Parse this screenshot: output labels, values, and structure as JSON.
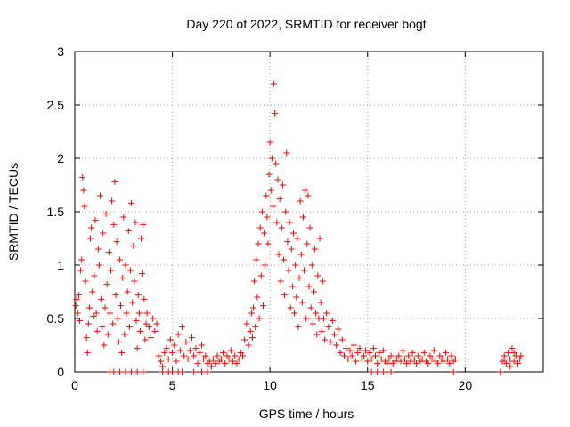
{
  "chart_data": {
    "type": "scatter",
    "title": "Day 220 of 2022, SRMTID for receiver bogt",
    "xlabel": "GPS time / hours",
    "ylabel": "SRMTID / TECUs",
    "xlim": [
      0,
      24
    ],
    "ylim": [
      0,
      3
    ],
    "xticks": [
      0,
      5,
      10,
      15,
      20
    ],
    "yticks": [
      0,
      0.5,
      1,
      1.5,
      2,
      2.5,
      3
    ],
    "ytick_labels": [
      "0",
      "0.5",
      "1",
      "1.5",
      "2",
      "2.5",
      "3"
    ],
    "grid": true,
    "marker": "+",
    "marker_color": "#ff0000",
    "series": [
      {
        "name": "SRMTID",
        "points": [
          [
            0.05,
            0.62
          ],
          [
            0.1,
            0.68
          ],
          [
            0.15,
            0.55
          ],
          [
            0.2,
            0.72
          ],
          [
            0.25,
            0.48
          ],
          [
            0.3,
            0.95
          ],
          [
            0.35,
            1.05
          ],
          [
            0.4,
            1.82
          ],
          [
            0.45,
            1.7
          ],
          [
            0.5,
            1.55
          ],
          [
            0.55,
            0.85
          ],
          [
            0.6,
            0.32
          ],
          [
            0.65,
            0.18
          ],
          [
            0.7,
            0.45
          ],
          [
            0.75,
            0.6
          ],
          [
            0.8,
            1.25
          ],
          [
            0.85,
            1.35
          ],
          [
            0.9,
            0.75
          ],
          [
            0.95,
            0.52
          ],
          [
            1.0,
            0.9
          ],
          [
            1.05,
            1.42
          ],
          [
            1.1,
            0.55
          ],
          [
            1.15,
            0.38
          ],
          [
            1.2,
            1.15
          ],
          [
            1.25,
            1.0
          ],
          [
            1.3,
            1.65
          ],
          [
            1.35,
            0.68
          ],
          [
            1.4,
            0.42
          ],
          [
            1.45,
            1.3
          ],
          [
            1.5,
            0.25
          ],
          [
            1.55,
            0.6
          ],
          [
            1.6,
            1.48
          ],
          [
            1.65,
            0.82
          ],
          [
            1.7,
            0.35
          ],
          [
            1.75,
            1.12
          ],
          [
            1.8,
            0.55
          ],
          [
            1.85,
            0.95
          ],
          [
            1.9,
            1.6
          ],
          [
            1.95,
            0.45
          ],
          [
            2.0,
            1.38
          ],
          [
            2.05,
            1.78
          ],
          [
            2.1,
            0.72
          ],
          [
            2.15,
            1.22
          ],
          [
            2.2,
            0.5
          ],
          [
            2.25,
            0.28
          ],
          [
            2.3,
            1.05
          ],
          [
            2.35,
            0.62
          ],
          [
            2.4,
            0.18
          ],
          [
            2.45,
            0.88
          ],
          [
            2.5,
            1.45
          ],
          [
            2.55,
            0.35
          ],
          [
            2.6,
            1.0
          ],
          [
            2.65,
            0.55
          ],
          [
            2.7,
            0.75
          ],
          [
            2.75,
            1.32
          ],
          [
            2.8,
            0.42
          ],
          [
            2.85,
            0.95
          ],
          [
            2.9,
            1.58
          ],
          [
            2.95,
            0.65
          ],
          [
            3.0,
            1.18
          ],
          [
            3.05,
            0.85
          ],
          [
            3.1,
            1.4
          ],
          [
            3.15,
            0.48
          ],
          [
            3.2,
            0.22
          ],
          [
            3.25,
            0.72
          ],
          [
            3.3,
            0.55
          ],
          [
            3.35,
            0.38
          ],
          [
            3.4,
            1.25
          ],
          [
            3.45,
            0.92
          ],
          [
            3.5,
            1.38
          ],
          [
            3.55,
            0.68
          ],
          [
            3.6,
            0.3
          ],
          [
            3.65,
            0.45
          ],
          [
            3.7,
            0.55
          ],
          [
            3.8,
            0.42
          ],
          [
            3.9,
            0.32
          ],
          [
            4.0,
            0.5
          ],
          [
            4.1,
            0.38
          ],
          [
            4.2,
            0.45
          ],
          [
            4.3,
            0.15
          ],
          [
            1.8,
            0.0
          ],
          [
            2.0,
            0.0
          ],
          [
            2.3,
            0.0
          ],
          [
            2.6,
            0.0
          ],
          [
            2.9,
            0.0
          ],
          [
            3.2,
            0.0
          ],
          [
            3.5,
            0.0
          ],
          [
            4.4,
            0.1
          ],
          [
            4.5,
            0.05
          ],
          [
            4.6,
            0.18
          ],
          [
            4.7,
            0.22
          ],
          [
            4.8,
            0.12
          ],
          [
            4.9,
            0.3
          ],
          [
            5.0,
            0.18
          ],
          [
            5.1,
            0.25
          ],
          [
            5.2,
            0.1
          ],
          [
            5.3,
            0.35
          ],
          [
            5.4,
            0.2
          ],
          [
            5.5,
            0.42
          ],
          [
            5.6,
            0.15
          ],
          [
            5.7,
            0.28
          ],
          [
            5.8,
            0.12
          ],
          [
            5.9,
            0.2
          ],
          [
            6.0,
            0.32
          ],
          [
            6.1,
            0.15
          ],
          [
            6.2,
            0.22
          ],
          [
            6.3,
            0.08
          ],
          [
            6.4,
            0.18
          ],
          [
            6.5,
            0.25
          ],
          [
            6.6,
            0.12
          ],
          [
            6.7,
            0.15
          ],
          [
            6.8,
            0.08
          ],
          [
            6.9,
            0.1
          ],
          [
            7.0,
            0.05
          ],
          [
            7.1,
            0.12
          ],
          [
            7.2,
            0.08
          ],
          [
            7.3,
            0.15
          ],
          [
            7.4,
            0.1
          ],
          [
            7.5,
            0.12
          ],
          [
            7.6,
            0.18
          ],
          [
            7.7,
            0.08
          ],
          [
            7.8,
            0.15
          ],
          [
            7.9,
            0.12
          ],
          [
            8.0,
            0.2
          ],
          [
            8.1,
            0.1
          ],
          [
            8.2,
            0.15
          ],
          [
            8.3,
            0.08
          ],
          [
            4.5,
            0.0
          ],
          [
            4.8,
            0.0
          ],
          [
            5.0,
            0.0
          ],
          [
            5.3,
            0.0
          ],
          [
            5.5,
            0.0
          ],
          [
            6.1,
            0.0
          ],
          [
            6.5,
            0.0
          ],
          [
            6.8,
            0.0
          ],
          [
            8.4,
            0.12
          ],
          [
            8.5,
            0.18
          ],
          [
            8.6,
            0.15
          ],
          [
            8.7,
            0.3
          ],
          [
            8.8,
            0.45
          ],
          [
            8.9,
            0.25
          ],
          [
            9.0,
            0.38
          ],
          [
            9.05,
            0.55
          ],
          [
            9.1,
            0.32
          ],
          [
            9.15,
            0.6
          ],
          [
            9.2,
            0.85
          ],
          [
            9.25,
            0.42
          ],
          [
            9.3,
            1.05
          ],
          [
            9.35,
            0.7
          ],
          [
            9.4,
            1.2
          ],
          [
            9.45,
            0.5
          ],
          [
            9.5,
            1.35
          ],
          [
            9.55,
            0.9
          ],
          [
            9.6,
            1.5
          ],
          [
            9.65,
            0.62
          ],
          [
            9.7,
            1.3
          ],
          [
            9.75,
            1.0
          ],
          [
            9.8,
            1.65
          ],
          [
            9.85,
            1.45
          ],
          [
            9.9,
            1.2
          ],
          [
            9.95,
            1.85
          ],
          [
            10.0,
            2.15
          ],
          [
            10.05,
            1.7
          ],
          [
            10.1,
            2.0
          ],
          [
            10.15,
            1.55
          ],
          [
            10.2,
            2.7
          ],
          [
            10.25,
            2.42
          ],
          [
            10.3,
            1.95
          ],
          [
            10.35,
            1.4
          ],
          [
            10.4,
            1.8
          ],
          [
            10.45,
            1.1
          ],
          [
            10.5,
            1.62
          ],
          [
            10.55,
            0.85
          ],
          [
            10.6,
            1.35
          ],
          [
            10.65,
            1.75
          ],
          [
            10.7,
            1.05
          ],
          [
            10.75,
            0.72
          ],
          [
            10.8,
            1.5
          ],
          [
            10.85,
            2.05
          ],
          [
            10.9,
            1.22
          ],
          [
            10.95,
            0.95
          ],
          [
            11.0,
            1.4
          ],
          [
            11.05,
            0.6
          ],
          [
            11.1,
            1.15
          ],
          [
            11.15,
            0.8
          ],
          [
            11.2,
            1.3
          ],
          [
            11.25,
            0.55
          ],
          [
            11.3,
            1.0
          ],
          [
            11.35,
            0.7
          ],
          [
            11.4,
            1.25
          ],
          [
            11.45,
            0.42
          ],
          [
            11.5,
            0.88
          ],
          [
            11.55,
            1.6
          ],
          [
            11.6,
            1.1
          ],
          [
            11.65,
            0.65
          ],
          [
            11.7,
            1.45
          ],
          [
            11.75,
            0.95
          ],
          [
            11.8,
            1.7
          ],
          [
            11.85,
            0.5
          ],
          [
            11.9,
            1.2
          ],
          [
            11.95,
            1.65
          ],
          [
            12.0,
            0.8
          ],
          [
            12.05,
            1.35
          ],
          [
            12.1,
            0.6
          ],
          [
            12.15,
            1.0
          ],
          [
            12.2,
            0.45
          ],
          [
            12.25,
            0.75
          ],
          [
            12.3,
            1.15
          ],
          [
            12.35,
            0.55
          ],
          [
            12.4,
            0.35
          ],
          [
            12.45,
            0.9
          ],
          [
            12.5,
            0.5
          ],
          [
            12.55,
            1.25
          ],
          [
            12.6,
            0.65
          ],
          [
            12.65,
            0.38
          ],
          [
            12.7,
            0.85
          ],
          [
            12.75,
            0.5
          ],
          [
            12.8,
            0.3
          ],
          [
            12.9,
            0.55
          ],
          [
            13.0,
            0.42
          ],
          [
            13.1,
            0.28
          ],
          [
            13.2,
            0.48
          ],
          [
            13.3,
            0.35
          ],
          [
            13.4,
            0.25
          ],
          [
            13.5,
            0.4
          ],
          [
            13.6,
            0.18
          ],
          [
            13.7,
            0.3
          ],
          [
            13.8,
            0.15
          ],
          [
            13.9,
            0.22
          ],
          [
            14.0,
            0.12
          ],
          [
            14.1,
            0.2
          ],
          [
            14.2,
            0.15
          ],
          [
            14.3,
            0.25
          ],
          [
            14.4,
            0.1
          ],
          [
            14.5,
            0.18
          ],
          [
            14.6,
            0.22
          ],
          [
            14.7,
            0.12
          ],
          [
            14.8,
            0.15
          ],
          [
            14.9,
            0.2
          ],
          [
            15.0,
            0.1
          ],
          [
            15.1,
            0.18
          ],
          [
            15.2,
            0.12
          ],
          [
            15.3,
            0.22
          ],
          [
            15.4,
            0.15
          ],
          [
            15.5,
            0.08
          ],
          [
            15.6,
            0.18
          ],
          [
            15.7,
            0.12
          ],
          [
            15.8,
            0.2
          ],
          [
            15.9,
            0.1
          ],
          [
            16.0,
            0.08
          ],
          [
            16.1,
            0.12
          ],
          [
            16.2,
            0.15
          ],
          [
            16.3,
            0.08
          ],
          [
            16.4,
            0.1
          ],
          [
            16.5,
            0.12
          ],
          [
            16.6,
            0.15
          ],
          [
            16.7,
            0.1
          ],
          [
            16.8,
            0.2
          ],
          [
            16.9,
            0.12
          ],
          [
            17.0,
            0.08
          ],
          [
            17.1,
            0.15
          ],
          [
            17.2,
            0.1
          ],
          [
            17.3,
            0.18
          ],
          [
            17.4,
            0.12
          ],
          [
            17.5,
            0.08
          ],
          [
            17.6,
            0.15
          ],
          [
            17.7,
            0.1
          ],
          [
            17.8,
            0.12
          ],
          [
            17.9,
            0.18
          ],
          [
            18.0,
            0.1
          ],
          [
            18.1,
            0.08
          ],
          [
            18.2,
            0.15
          ],
          [
            18.3,
            0.12
          ],
          [
            18.4,
            0.2
          ],
          [
            18.5,
            0.1
          ],
          [
            18.6,
            0.08
          ],
          [
            18.7,
            0.15
          ],
          [
            18.8,
            0.12
          ],
          [
            18.9,
            0.1
          ],
          [
            19.0,
            0.18
          ],
          [
            19.1,
            0.12
          ],
          [
            19.2,
            0.08
          ],
          [
            19.3,
            0.15
          ],
          [
            19.4,
            0.1
          ],
          [
            19.5,
            0.12
          ],
          [
            15.2,
            0.0
          ],
          [
            15.5,
            0.0
          ],
          [
            15.8,
            0.0
          ],
          [
            16.2,
            0.0
          ],
          [
            19.4,
            0.0
          ],
          [
            21.8,
            0.0
          ],
          [
            21.9,
            0.1
          ],
          [
            22.0,
            0.15
          ],
          [
            22.1,
            0.08
          ],
          [
            22.2,
            0.18
          ],
          [
            22.3,
            0.12
          ],
          [
            22.4,
            0.22
          ],
          [
            22.5,
            0.1
          ],
          [
            22.6,
            0.15
          ],
          [
            22.7,
            0.08
          ],
          [
            22.8,
            0.12
          ],
          [
            22.85,
            0.15
          ],
          [
            22.5,
            0.18
          ],
          [
            22.3,
            0.05
          ],
          [
            22.0,
            0.12
          ]
        ]
      }
    ]
  }
}
